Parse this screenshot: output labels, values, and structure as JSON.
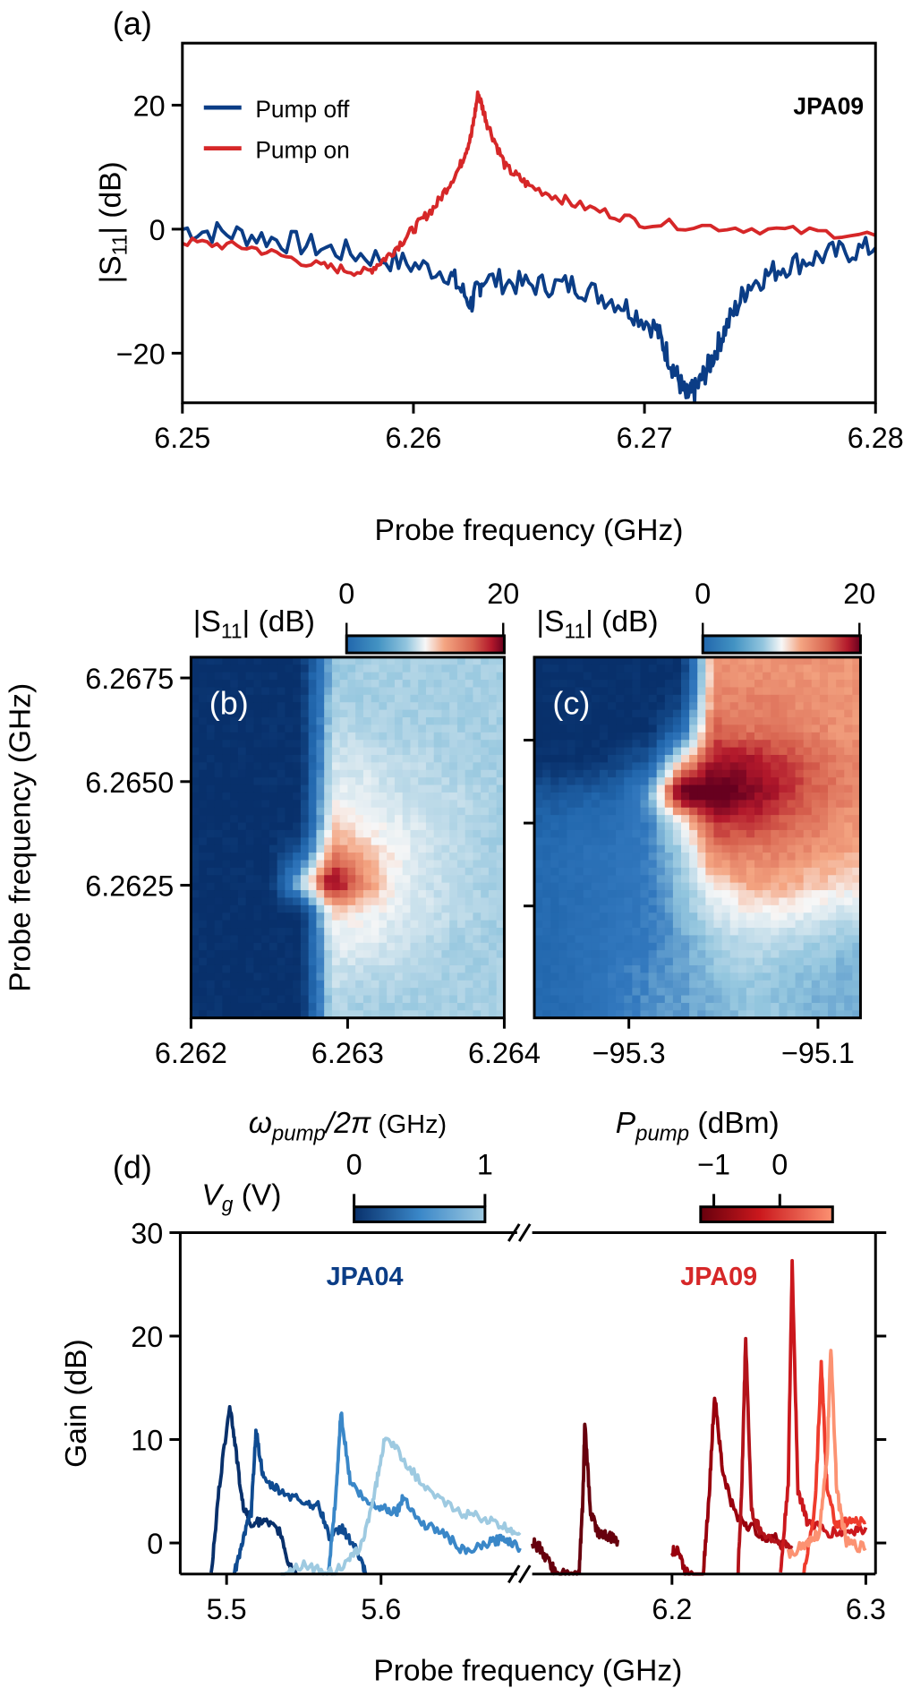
{
  "chart_data": [
    {
      "panel": "(a)",
      "type": "line",
      "xlabel": "Probe frequency (GHz)",
      "ylabel": {
        "pre": "|S",
        "sub": "11",
        "post": "| (dB)"
      },
      "xlim": [
        6.25,
        6.28
      ],
      "ylim": [
        -28,
        30
      ],
      "xticks": [
        "6.25",
        "6.26",
        "6.27",
        "6.28"
      ],
      "xtick_values": [
        6.25,
        6.26,
        6.27,
        6.28
      ],
      "yticks": [
        "−20",
        "0",
        "20"
      ],
      "ytick_values": [
        -20,
        0,
        20
      ],
      "annotation": "JPA09",
      "legend_placement": "top-left",
      "series": [
        {
          "name": "Pump off",
          "color": "#0b3d86",
          "x": [
            6.25,
            6.253,
            6.256,
            6.259,
            6.2615,
            6.2625,
            6.263,
            6.265,
            6.267,
            6.269,
            6.2705,
            6.2712,
            6.2718,
            6.2722,
            6.2728,
            6.2735,
            6.2745,
            6.276,
            6.278,
            6.28
          ],
          "y": [
            0,
            -1,
            -3,
            -5,
            -7,
            -12,
            -8,
            -9,
            -9,
            -12,
            -16,
            -22,
            -27,
            -26,
            -22,
            -16,
            -9,
            -6,
            -4,
            -3
          ]
        },
        {
          "name": "Pump on",
          "color": "#d62728",
          "x": [
            6.25,
            6.253,
            6.256,
            6.258,
            6.259,
            6.26,
            6.261,
            6.262,
            6.2625,
            6.2628,
            6.2632,
            6.264,
            6.265,
            6.267,
            6.27,
            6.275,
            6.28
          ],
          "y": [
            -2,
            -3,
            -6,
            -7,
            -4,
            0,
            4,
            10,
            15,
            22,
            17,
            10,
            7,
            4,
            1,
            0,
            -1
          ]
        }
      ]
    },
    {
      "panel": "(b)",
      "type": "heatmap",
      "xlabel": {
        "sym": "ω",
        "sub": "pump",
        "post1": "/2π",
        "post2": " (GHz)"
      },
      "ylabel": "Probe frequency (GHz)",
      "xlim": [
        6.262,
        6.264
      ],
      "ylim": [
        6.2593,
        6.268
      ],
      "xticks": [
        "6.262",
        "6.263",
        "6.264"
      ],
      "xtick_values": [
        6.262,
        6.263,
        6.264
      ],
      "yticks": [
        "6.2675",
        "6.2650",
        "6.2625"
      ],
      "ytick_values": [
        6.2675,
        6.265,
        6.2625
      ],
      "colorbar": {
        "label": {
          "pre": "|S",
          "sub": "11",
          "post": "| (dB)"
        },
        "min_label": "0",
        "max_label": "20",
        "range": [
          0,
          20
        ]
      },
      "z": [
        [
          -10,
          -10,
          -10,
          -10,
          4,
          5,
          5,
          5,
          5,
          5
        ],
        [
          -10,
          -10,
          -10,
          -10,
          5,
          5,
          5,
          5,
          5,
          5
        ],
        [
          -10,
          -10,
          -10,
          -10,
          6,
          6,
          5,
          5,
          5,
          5
        ],
        [
          -10,
          -10,
          -10,
          -10,
          7,
          7,
          6,
          6,
          5,
          5
        ],
        [
          -10,
          -10,
          -10,
          -10,
          8,
          8,
          7,
          6,
          6,
          5
        ],
        [
          -10,
          -10,
          -10,
          -10,
          10,
          9,
          8,
          7,
          6,
          5
        ],
        [
          -10,
          -10,
          -10,
          -5,
          14,
          11,
          9,
          7,
          6,
          5
        ],
        [
          -10,
          -10,
          -10,
          6,
          22,
          14,
          9,
          7,
          6,
          5
        ],
        [
          -10,
          -10,
          -10,
          -10,
          10,
          9,
          8,
          7,
          6,
          5
        ],
        [
          -10,
          -10,
          -10,
          -10,
          8,
          8,
          7,
          6,
          5,
          5
        ],
        [
          -10,
          -10,
          -10,
          -10,
          7,
          6,
          6,
          5,
          5,
          5
        ],
        [
          -10,
          -10,
          -10,
          -10,
          6,
          5,
          5,
          5,
          5,
          5
        ]
      ]
    },
    {
      "panel": "(c)",
      "type": "heatmap",
      "xlabel": {
        "sym": "P",
        "sub": "pump",
        "post": " (dBm)"
      },
      "xlim": [
        -95.4,
        -95.055
      ],
      "ylim": [
        6.2593,
        6.268
      ],
      "xticks": [
        "−95.3",
        "−95.1"
      ],
      "xtick_values": [
        -95.3,
        -95.1
      ],
      "ytick_values": [
        6.266,
        6.264,
        6.262
      ],
      "colorbar": {
        "label": {
          "pre": "|S",
          "sub": "11",
          "post": "| (dB)"
        },
        "min_label": "0",
        "max_label": "20",
        "range": [
          0,
          20
        ]
      },
      "z": [
        [
          -10,
          -10,
          -10,
          -10,
          -10,
          13,
          13,
          13,
          13,
          13
        ],
        [
          -10,
          -10,
          -10,
          -10,
          -8,
          14,
          14,
          14,
          13,
          13
        ],
        [
          -10,
          -10,
          -10,
          -10,
          -2,
          16,
          15,
          15,
          14,
          13
        ],
        [
          -10,
          -10,
          -8,
          -5,
          10,
          20,
          20,
          18,
          16,
          14
        ],
        [
          -6,
          -5,
          -4,
          2,
          24,
          25,
          22,
          19,
          16,
          14
        ],
        [
          -4,
          -3,
          -2,
          0,
          8,
          18,
          18,
          16,
          15,
          13
        ],
        [
          -3,
          -2,
          -1,
          0,
          5,
          14,
          14,
          14,
          13,
          12
        ],
        [
          -3,
          -2,
          -1,
          0,
          4,
          10,
          12,
          12,
          11,
          10
        ],
        [
          -3,
          -2,
          -1,
          0,
          3,
          7,
          9,
          9,
          8,
          7
        ],
        [
          -3,
          -2,
          -1,
          0,
          2,
          5,
          6,
          6,
          5,
          4
        ],
        [
          -3,
          -2,
          0,
          1,
          2,
          4,
          5,
          4,
          4,
          3
        ],
        [
          -3,
          -2,
          0,
          1,
          2,
          3,
          4,
          4,
          3,
          3
        ]
      ]
    },
    {
      "panel": "(d)",
      "type": "line",
      "xlabel": "Probe frequency (GHz)",
      "ylabel": "Gain (dB)",
      "broken_x_axis": true,
      "xlim_left": [
        5.47,
        5.693
      ],
      "xlim_right": [
        6.124,
        6.305
      ],
      "ylim": [
        -3,
        30
      ],
      "xticks": [
        "5.5",
        "5.6",
        "6.2",
        "6.3"
      ],
      "xtick_values": [
        5.5,
        5.6,
        6.2,
        6.3
      ],
      "yticks": [
        "0",
        "10",
        "20",
        "30"
      ],
      "ytick_values": [
        0,
        10,
        20,
        30
      ],
      "labels": [
        {
          "text": "JPA04",
          "color": "#0b3d86"
        },
        {
          "text": "JPA09",
          "color": "#d62728"
        }
      ],
      "colorbar_blue": {
        "label": {
          "sym": "V",
          "sub": "g",
          "post": " (V)"
        },
        "tick_labels": [
          "0",
          "1"
        ],
        "tick_values": [
          0,
          1
        ],
        "range": [
          0,
          1
        ]
      },
      "colorbar_red": {
        "tick_labels": [
          "−1",
          "0"
        ],
        "tick_values": [
          -1,
          0
        ],
        "range": [
          -1.2,
          0.8
        ]
      },
      "series_left": [
        {
          "color": "#08306b",
          "x": [
            5.49,
            5.495,
            5.502,
            5.506,
            5.51,
            5.515,
            5.525,
            5.535,
            5.54,
            5.545
          ],
          "y": [
            -3,
            5,
            13.5,
            9,
            4,
            2,
            2,
            1,
            -2,
            -3
          ]
        },
        {
          "color": "#0f4b91",
          "x": [
            5.505,
            5.51,
            5.516,
            5.519,
            5.524,
            5.535,
            5.55,
            5.56,
            5.567,
            5.575,
            5.585,
            5.59
          ],
          "y": [
            -3,
            0,
            3,
            11,
            6,
            5,
            4,
            3.5,
            0.5,
            1.5,
            -1,
            -3
          ]
        },
        {
          "color": "#3a87c8",
          "x": [
            5.566,
            5.571,
            5.574,
            5.58,
            5.59,
            5.6,
            5.61,
            5.615,
            5.625,
            5.64,
            5.655,
            5.67,
            5.68,
            5.69
          ],
          "y": [
            -3,
            5,
            12.7,
            6,
            4,
            3.5,
            3,
            4.5,
            2,
            1,
            -1,
            0,
            0.5,
            -0.5
          ]
        },
        {
          "color": "#9ecae1",
          "x": [
            5.535,
            5.55,
            5.565,
            5.578,
            5.588,
            5.596,
            5.603,
            5.615,
            5.63,
            5.65,
            5.665,
            5.68,
            5.69
          ],
          "y": [
            -3,
            -2,
            -3,
            -2,
            0,
            5,
            10.5,
            8,
            5,
            3,
            2.5,
            1.5,
            1
          ]
        }
      ],
      "series_right": [
        {
          "color": "#67000d",
          "x": [
            6.128,
            6.132,
            6.137,
            6.14,
            6.152,
            6.154,
            6.155,
            6.158,
            6.162,
            6.168,
            6.172
          ],
          "y": [
            0,
            -0.5,
            -2,
            -3,
            -3,
            4,
            11.5,
            3,
            1,
            0.5,
            0.3
          ]
        },
        {
          "color": "#99000d",
          "x": [
            6.2,
            6.203,
            6.207,
            6.216,
            6.219,
            6.222,
            6.226,
            6.232,
            6.24,
            6.25,
            6.26
          ],
          "y": [
            -1,
            -0.5,
            -3,
            -3,
            4,
            14.5,
            7,
            3,
            1.5,
            0.5,
            0
          ]
        },
        {
          "color": "#b3131a",
          "x": [
            6.234,
            6.236,
            6.238,
            6.241,
            6.246,
            6.255,
            6.262
          ],
          "y": [
            -3,
            5,
            20,
            3,
            1,
            0,
            -0.5
          ]
        },
        {
          "color": "#cb181d",
          "x": [
            6.256,
            6.26,
            6.262,
            6.265,
            6.27,
            6.28,
            6.29,
            6.3
          ],
          "y": [
            -3,
            6,
            27,
            5,
            2,
            1,
            1,
            1.5
          ]
        },
        {
          "color": "#ef3b2c",
          "x": [
            6.268,
            6.274,
            6.277,
            6.28,
            6.285,
            6.29,
            6.3
          ],
          "y": [
            -3,
            4,
            17.5,
            5,
            1.5,
            2,
            2
          ]
        },
        {
          "color": "#fc9272",
          "x": [
            6.26,
            6.27,
            6.276,
            6.28,
            6.282,
            6.285,
            6.29,
            6.3
          ],
          "y": [
            -1,
            0,
            1,
            8,
            19,
            5,
            0,
            -0.5
          ]
        }
      ]
    }
  ]
}
